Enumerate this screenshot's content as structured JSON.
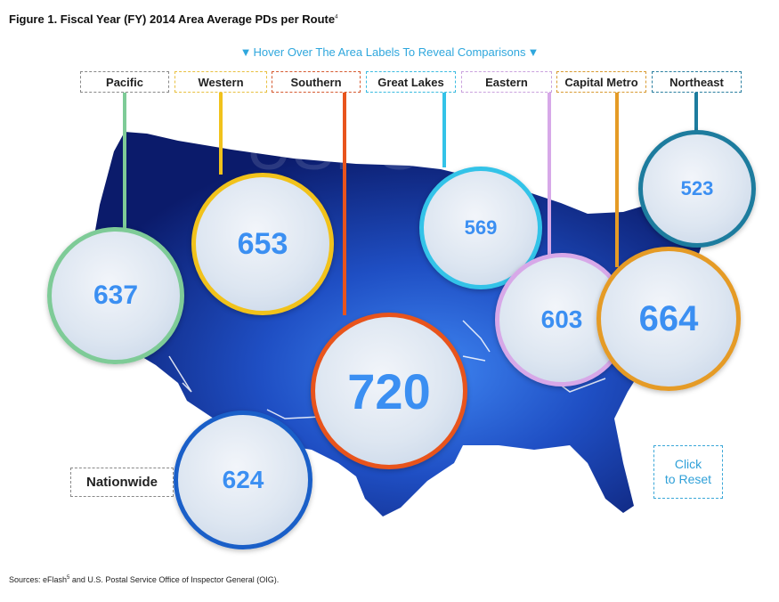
{
  "figure": {
    "title": "Figure 1. Fiscal Year (FY) 2014 Area Average PDs per Route",
    "title_footnote": "4"
  },
  "hint": {
    "arrow": "▼",
    "text": "Hover Over The Area Labels To Reveal Comparisons"
  },
  "watermark": "USPS OIG",
  "areas": [
    {
      "label": "Pacific",
      "value": "637",
      "color": "#7ecb97"
    },
    {
      "label": "Western",
      "value": "653",
      "color": "#f1c21b"
    },
    {
      "label": "Southern",
      "value": "720",
      "color": "#e8541c"
    },
    {
      "label": "Great Lakes",
      "value": "569",
      "color": "#33c3e8"
    },
    {
      "label": "Eastern",
      "value": "603",
      "color": "#d7a8e8"
    },
    {
      "label": "Capital Metro",
      "value": "664",
      "color": "#e59b26"
    },
    {
      "label": "Northeast",
      "value": "523",
      "color": "#1d7c9e"
    }
  ],
  "nationwide": {
    "label": "Nationwide",
    "value": "624",
    "color": "#1a5fc8"
  },
  "reset": {
    "line1": "Click",
    "line2": "to Reset"
  },
  "sources": {
    "prefix": "Sources: eFlash",
    "footnote": "5",
    "suffix": " and U.S. Postal Service Office of Inspector General (OIG)."
  },
  "colors": {
    "map_dark": "#0b1b6b",
    "map_light": "#2d6fe8",
    "value_text": "#3b8ff2",
    "accent": "#2fa7dd"
  }
}
